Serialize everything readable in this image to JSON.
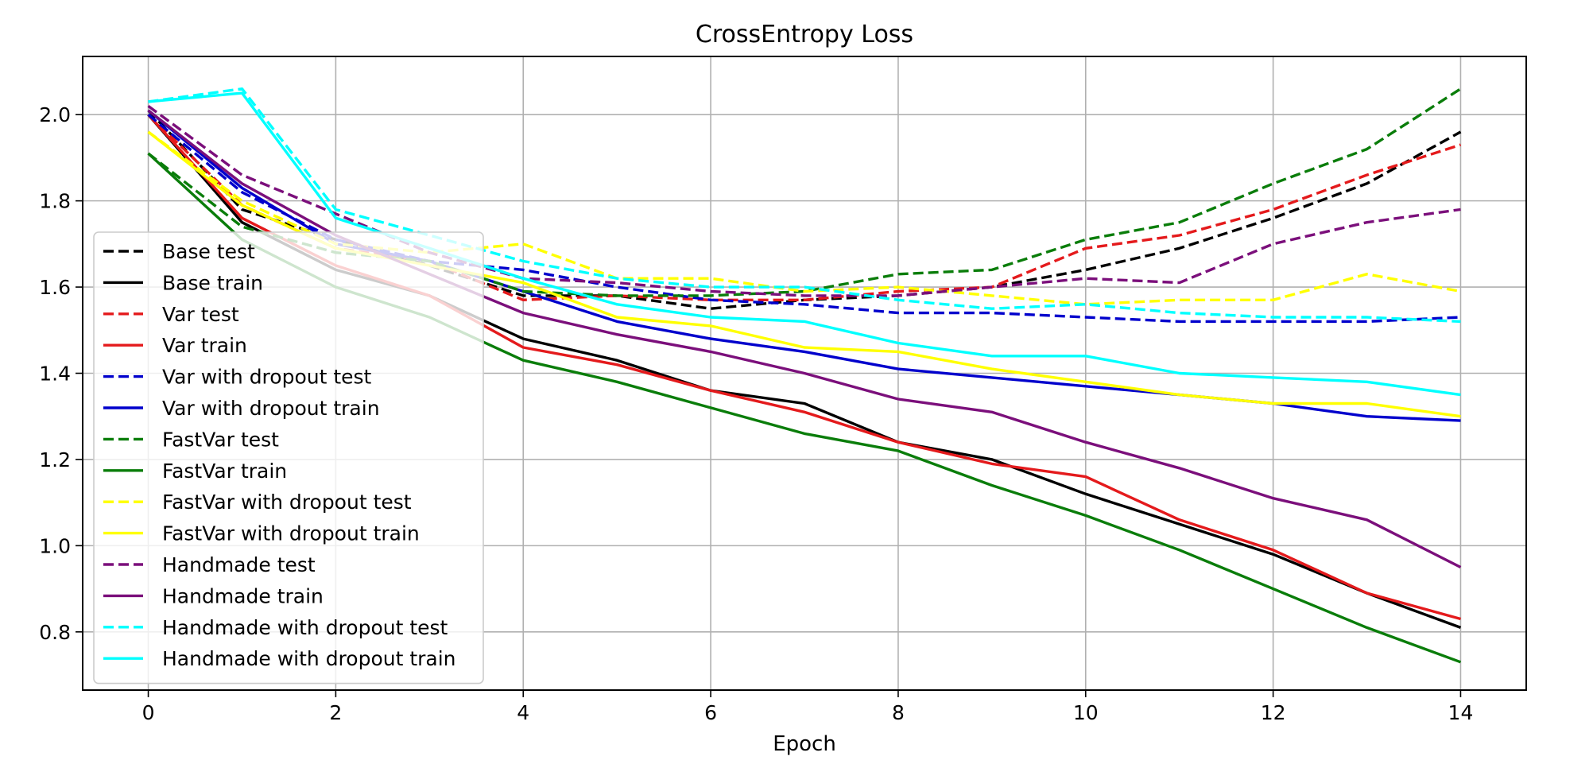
{
  "chart_data": {
    "type": "line",
    "title": "CrossEntropy Loss",
    "xlabel": "Epoch",
    "ylabel": "",
    "xlim": [
      -0.7,
      14.7
    ],
    "ylim": [
      0.665,
      2.135
    ],
    "xticks": [
      0,
      2,
      4,
      6,
      8,
      10,
      12,
      14
    ],
    "yticks": [
      0.8,
      1.0,
      1.2,
      1.4,
      1.6,
      1.8,
      2.0
    ],
    "xtick_labels": [
      "0",
      "2",
      "4",
      "6",
      "8",
      "10",
      "12",
      "14"
    ],
    "ytick_labels": [
      "0.8",
      "1.0",
      "1.2",
      "1.4",
      "1.6",
      "1.8",
      "2.0"
    ],
    "grid": true,
    "legend_position": "lower-left",
    "x": [
      0,
      1,
      2,
      3,
      4,
      5,
      6,
      7,
      8,
      9,
      10,
      11,
      12,
      13,
      14
    ],
    "series": [
      {
        "name": "Base test",
        "color": "#000000",
        "style": "dashed",
        "values": [
          2.01,
          1.78,
          1.71,
          1.65,
          1.58,
          1.58,
          1.55,
          1.57,
          1.58,
          1.6,
          1.64,
          1.69,
          1.76,
          1.84,
          1.96
        ]
      },
      {
        "name": "Base train",
        "color": "#000000",
        "style": "solid",
        "values": [
          2.0,
          1.75,
          1.64,
          1.58,
          1.48,
          1.43,
          1.36,
          1.33,
          1.24,
          1.2,
          1.12,
          1.05,
          0.98,
          0.89,
          0.81
        ]
      },
      {
        "name": "Var test",
        "color": "#e41a1c",
        "style": "dashed",
        "values": [
          2.0,
          1.79,
          1.69,
          1.66,
          1.57,
          1.58,
          1.57,
          1.57,
          1.59,
          1.6,
          1.69,
          1.72,
          1.78,
          1.86,
          1.93
        ]
      },
      {
        "name": "Var train",
        "color": "#e41a1c",
        "style": "solid",
        "values": [
          2.0,
          1.76,
          1.65,
          1.58,
          1.46,
          1.42,
          1.36,
          1.31,
          1.24,
          1.19,
          1.16,
          1.06,
          0.99,
          0.89,
          0.83
        ]
      },
      {
        "name": "Var with dropout test",
        "color": "#0000cc",
        "style": "dashed",
        "values": [
          2.0,
          1.82,
          1.71,
          1.66,
          1.64,
          1.6,
          1.57,
          1.56,
          1.54,
          1.54,
          1.53,
          1.52,
          1.52,
          1.52,
          1.53
        ]
      },
      {
        "name": "Var with dropout train",
        "color": "#0000cc",
        "style": "solid",
        "values": [
          2.01,
          1.83,
          1.7,
          1.66,
          1.59,
          1.52,
          1.48,
          1.45,
          1.41,
          1.39,
          1.37,
          1.35,
          1.33,
          1.3,
          1.29
        ]
      },
      {
        "name": "FastVar test",
        "color": "#0a7d0a",
        "style": "dashed",
        "values": [
          1.91,
          1.74,
          1.68,
          1.66,
          1.59,
          1.58,
          1.58,
          1.59,
          1.63,
          1.64,
          1.71,
          1.75,
          1.84,
          1.92,
          2.06
        ]
      },
      {
        "name": "FastVar train",
        "color": "#0a7d0a",
        "style": "solid",
        "values": [
          1.91,
          1.71,
          1.6,
          1.53,
          1.43,
          1.38,
          1.32,
          1.26,
          1.22,
          1.14,
          1.07,
          0.99,
          0.9,
          0.81,
          0.73
        ]
      },
      {
        "name": "FastVar with dropout test",
        "color": "#ffff00",
        "style": "dashed",
        "values": [
          1.96,
          1.8,
          1.7,
          1.68,
          1.7,
          1.62,
          1.62,
          1.59,
          1.6,
          1.58,
          1.56,
          1.57,
          1.57,
          1.63,
          1.59
        ]
      },
      {
        "name": "FastVar with dropout train",
        "color": "#ffff00",
        "style": "solid",
        "values": [
          1.96,
          1.79,
          1.69,
          1.65,
          1.61,
          1.53,
          1.51,
          1.46,
          1.45,
          1.41,
          1.38,
          1.35,
          1.33,
          1.33,
          1.3
        ]
      },
      {
        "name": "Handmade test",
        "color": "#7b0f7b",
        "style": "dashed",
        "values": [
          2.02,
          1.86,
          1.77,
          1.68,
          1.62,
          1.61,
          1.59,
          1.58,
          1.58,
          1.6,
          1.62,
          1.61,
          1.7,
          1.75,
          1.78
        ]
      },
      {
        "name": "Handmade train",
        "color": "#7b0f7b",
        "style": "solid",
        "values": [
          2.01,
          1.84,
          1.72,
          1.63,
          1.54,
          1.49,
          1.45,
          1.4,
          1.34,
          1.31,
          1.24,
          1.18,
          1.11,
          1.06,
          0.95
        ]
      },
      {
        "name": "Handmade with dropout test",
        "color": "#00ffff",
        "style": "dashed",
        "values": [
          2.03,
          2.06,
          1.78,
          1.72,
          1.66,
          1.62,
          1.6,
          1.6,
          1.57,
          1.55,
          1.56,
          1.54,
          1.53,
          1.53,
          1.52
        ]
      },
      {
        "name": "Handmade with dropout train",
        "color": "#00ffff",
        "style": "solid",
        "values": [
          2.03,
          2.05,
          1.76,
          1.69,
          1.62,
          1.56,
          1.53,
          1.52,
          1.47,
          1.44,
          1.44,
          1.4,
          1.39,
          1.38,
          1.35
        ]
      }
    ]
  }
}
